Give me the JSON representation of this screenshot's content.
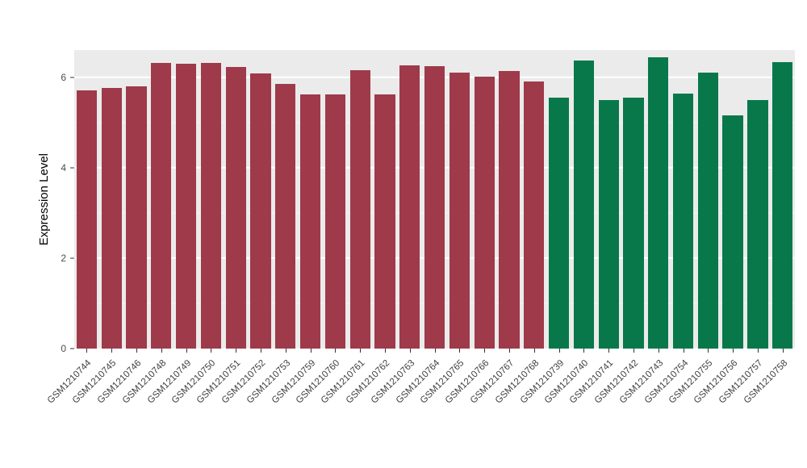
{
  "chart_data": {
    "type": "bar",
    "title": "",
    "xlabel": "",
    "ylabel": "Expression Level",
    "ylim": [
      0,
      6.6
    ],
    "yticks": [
      0,
      2,
      4,
      6
    ],
    "yticks_minor": [
      1,
      3,
      5
    ],
    "grid": "major and minor horizontal white lines on gray panel",
    "legend": "none",
    "panel_background": "#EBEBEB",
    "group_colors": {
      "group1": "#9E3A4A",
      "group2": "#08784A"
    },
    "categories": [
      "GSM1210744",
      "GSM1210745",
      "GSM1210746",
      "GSM1210748",
      "GSM1210749",
      "GSM1210750",
      "GSM1210751",
      "GSM1210752",
      "GSM1210753",
      "GSM1210759",
      "GSM1210760",
      "GSM1210761",
      "GSM1210762",
      "GSM1210763",
      "GSM1210764",
      "GSM1210765",
      "GSM1210766",
      "GSM1210767",
      "GSM1210768",
      "GSM1210739",
      "GSM1210740",
      "GSM1210741",
      "GSM1210742",
      "GSM1210743",
      "GSM1210754",
      "GSM1210755",
      "GSM1210756",
      "GSM1210757",
      "GSM1210758"
    ],
    "values": [
      5.7,
      5.76,
      5.8,
      6.32,
      6.3,
      6.32,
      6.22,
      6.08,
      5.86,
      5.62,
      5.62,
      6.16,
      5.62,
      6.26,
      6.24,
      6.1,
      6.02,
      6.14,
      5.9,
      5.54,
      6.36,
      5.5,
      5.54,
      6.44,
      5.63,
      6.1,
      5.15,
      5.49,
      6.34
    ],
    "groups": [
      "group1",
      "group1",
      "group1",
      "group1",
      "group1",
      "group1",
      "group1",
      "group1",
      "group1",
      "group1",
      "group1",
      "group1",
      "group1",
      "group1",
      "group1",
      "group1",
      "group1",
      "group1",
      "group1",
      "group2",
      "group2",
      "group2",
      "group2",
      "group2",
      "group2",
      "group2",
      "group2",
      "group2",
      "group2"
    ]
  }
}
